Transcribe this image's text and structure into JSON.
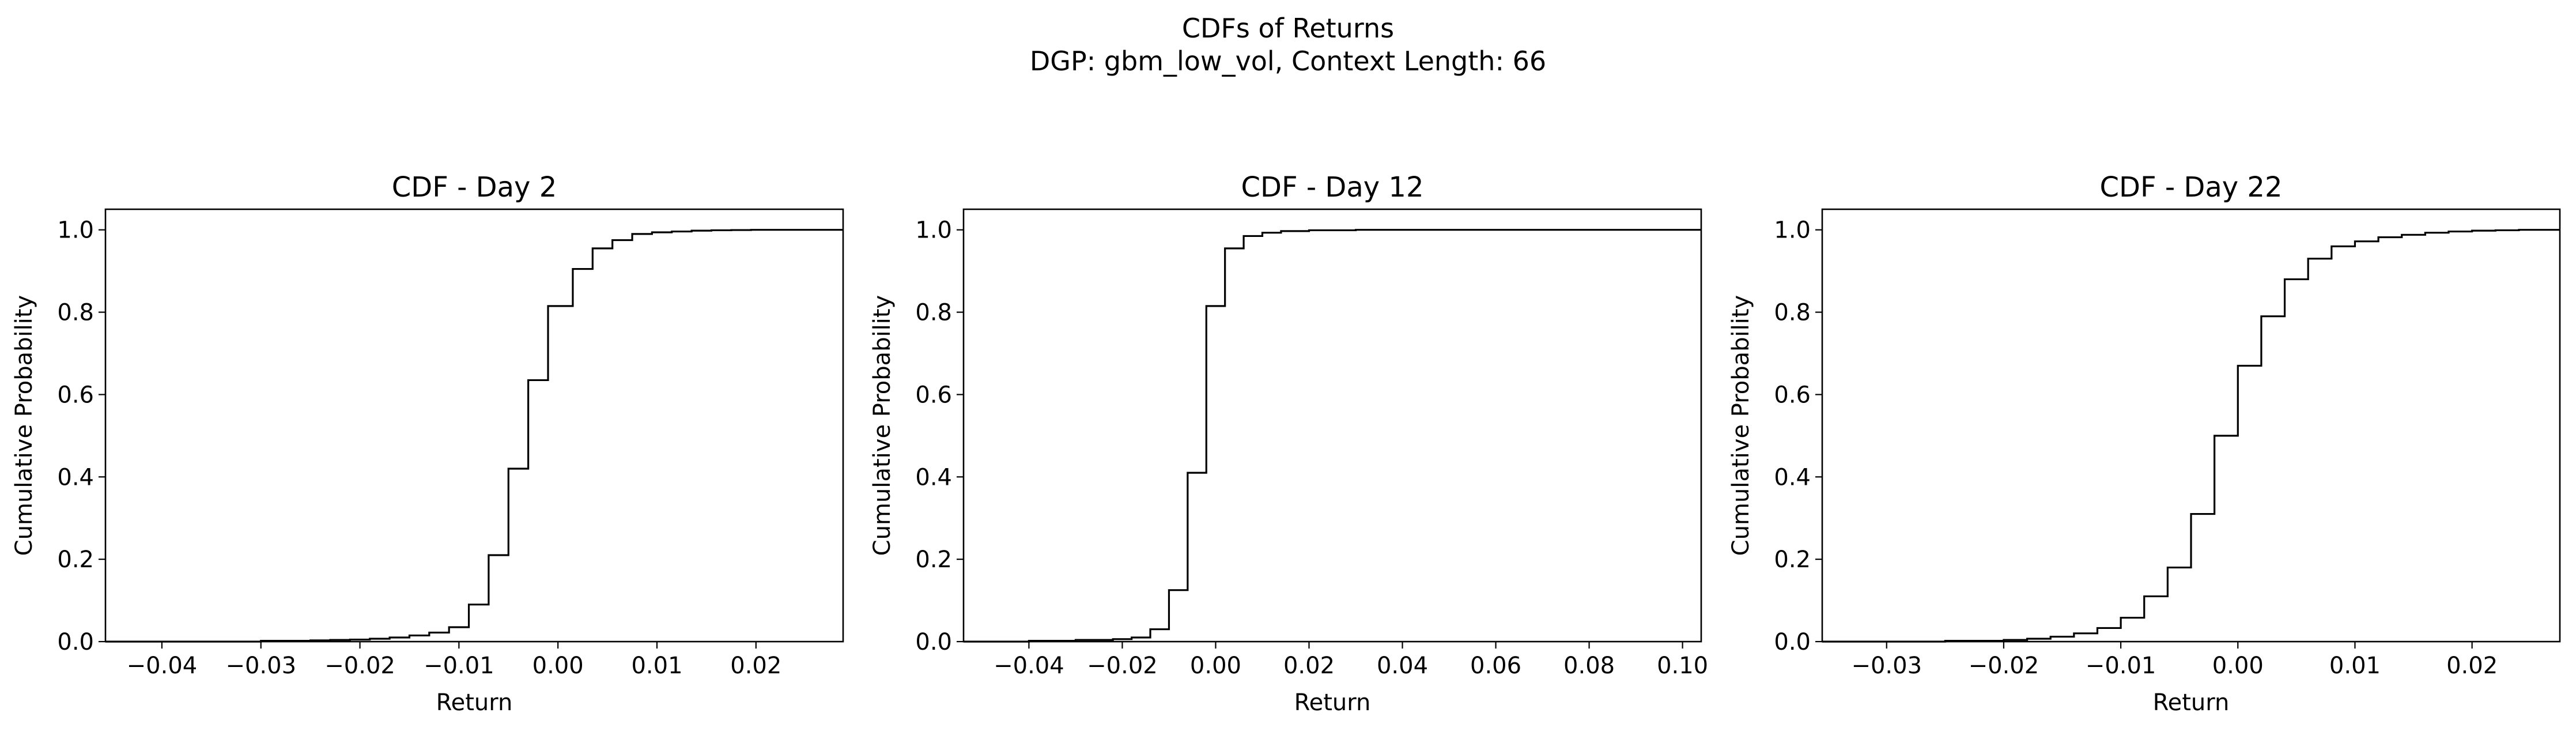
{
  "figure": {
    "title_line1": "CDFs of Returns",
    "title_line2": "DGP: gbm_low_vol, Context Length: 66"
  },
  "colors": {
    "line": "#000000",
    "axes": "#000000",
    "background": "#ffffff"
  },
  "chart_data": [
    {
      "type": "line",
      "drawstyle": "step",
      "title": "CDF - Day 2",
      "xlabel": "Return",
      "ylabel": "Cumulative Probability",
      "xlim": [
        -0.0457,
        0.0288
      ],
      "ylim": [
        0.0,
        1.05
      ],
      "xticks": [
        -0.04,
        -0.03,
        -0.02,
        -0.01,
        0.0,
        0.01,
        0.02
      ],
      "xtick_labels": [
        "−0.04",
        "−0.03",
        "−0.02",
        "−0.01",
        "0.00",
        "0.01",
        "0.02"
      ],
      "yticks": [
        0.0,
        0.2,
        0.4,
        0.6,
        0.8,
        1.0
      ],
      "ytick_labels": [
        "0.0",
        "0.2",
        "0.4",
        "0.6",
        "0.8",
        "1.0"
      ],
      "grid": false,
      "series": [
        {
          "x": [
            -0.0457,
            -0.03,
            -0.025,
            -0.023,
            -0.021,
            -0.019,
            -0.017,
            -0.015,
            -0.013,
            -0.011,
            -0.009,
            -0.007,
            -0.005,
            -0.003,
            -0.001,
            0.0015,
            0.0035,
            0.0055,
            0.0075,
            0.0095,
            0.0115,
            0.0135,
            0.0155,
            0.0175,
            0.0195,
            0.0215,
            0.024,
            0.026,
            0.0288
          ],
          "y": [
            0.0,
            0.002,
            0.003,
            0.004,
            0.005,
            0.007,
            0.01,
            0.015,
            0.022,
            0.035,
            0.09,
            0.21,
            0.42,
            0.635,
            0.815,
            0.905,
            0.955,
            0.975,
            0.99,
            0.994,
            0.996,
            0.998,
            0.999,
            0.9995,
            1.0,
            1.0,
            1.0,
            1.0,
            1.0
          ]
        }
      ]
    },
    {
      "type": "line",
      "drawstyle": "step",
      "title": "CDF - Day 12",
      "xlabel": "Return",
      "ylabel": "Cumulative Probability",
      "xlim": [
        -0.054,
        0.104
      ],
      "ylim": [
        0.0,
        1.05
      ],
      "xticks": [
        -0.04,
        -0.02,
        0.0,
        0.02,
        0.04,
        0.06,
        0.08,
        0.1
      ],
      "xtick_labels": [
        "−0.04",
        "−0.02",
        "0.00",
        "0.02",
        "0.04",
        "0.06",
        "0.08",
        "0.10"
      ],
      "yticks": [
        0.0,
        0.2,
        0.4,
        0.6,
        0.8,
        1.0
      ],
      "ytick_labels": [
        "0.0",
        "0.2",
        "0.4",
        "0.6",
        "0.8",
        "1.0"
      ],
      "grid": false,
      "series": [
        {
          "x": [
            -0.054,
            -0.04,
            -0.03,
            -0.022,
            -0.018,
            -0.014,
            -0.01,
            -0.006,
            -0.002,
            0.002,
            0.006,
            0.01,
            0.014,
            0.02,
            0.03,
            0.06,
            0.1,
            0.104
          ],
          "y": [
            0.0,
            0.002,
            0.004,
            0.006,
            0.01,
            0.03,
            0.125,
            0.41,
            0.815,
            0.955,
            0.985,
            0.993,
            0.997,
            0.999,
            1.0,
            1.0,
            1.0,
            1.0
          ]
        }
      ]
    },
    {
      "type": "line",
      "drawstyle": "step",
      "title": "CDF - Day 22",
      "xlabel": "Return",
      "ylabel": "Cumulative Probability",
      "xlim": [
        -0.0355,
        0.0275
      ],
      "ylim": [
        0.0,
        1.05
      ],
      "xticks": [
        -0.03,
        -0.02,
        -0.01,
        0.0,
        0.01,
        0.02
      ],
      "xtick_labels": [
        "−0.03",
        "−0.02",
        "−0.01",
        "0.00",
        "0.01",
        "0.02"
      ],
      "yticks": [
        0.0,
        0.2,
        0.4,
        0.6,
        0.8,
        1.0
      ],
      "ytick_labels": [
        "0.0",
        "0.2",
        "0.4",
        "0.6",
        "0.8",
        "1.0"
      ],
      "grid": false,
      "series": [
        {
          "x": [
            -0.0355,
            -0.025,
            -0.02,
            -0.018,
            -0.016,
            -0.014,
            -0.012,
            -0.01,
            -0.008,
            -0.006,
            -0.004,
            -0.002,
            0.0,
            0.002,
            0.004,
            0.006,
            0.008,
            0.01,
            0.012,
            0.014,
            0.016,
            0.018,
            0.02,
            0.022,
            0.024,
            0.0275
          ],
          "y": [
            0.0,
            0.002,
            0.004,
            0.007,
            0.012,
            0.02,
            0.033,
            0.058,
            0.11,
            0.18,
            0.31,
            0.5,
            0.67,
            0.79,
            0.88,
            0.93,
            0.96,
            0.972,
            0.982,
            0.988,
            0.993,
            0.996,
            0.998,
            0.999,
            1.0,
            1.0
          ]
        }
      ]
    }
  ]
}
